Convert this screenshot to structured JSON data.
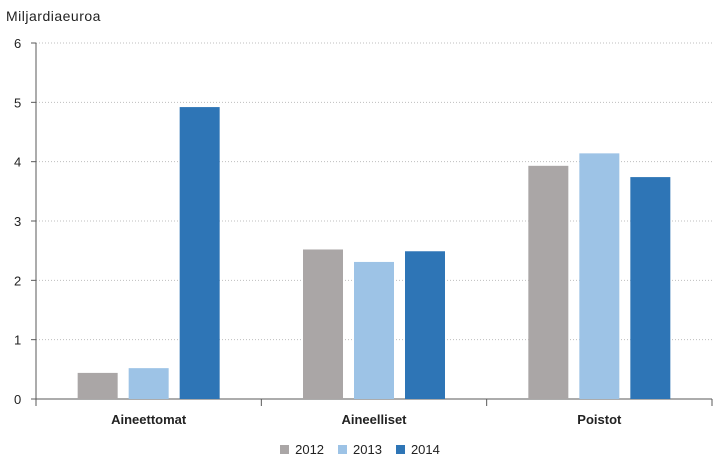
{
  "chart_data": {
    "type": "bar",
    "ylabel": "Miljardiaeuroa",
    "categories": [
      "Aineettomat",
      "Aineelliset",
      "Poistot"
    ],
    "series": [
      {
        "name": "2012",
        "color": "#aaa6a6",
        "values": [
          0.44,
          2.52,
          3.93
        ]
      },
      {
        "name": "2013",
        "color": "#9dc3e6",
        "values": [
          0.52,
          2.31,
          4.14
        ]
      },
      {
        "name": "2014",
        "color": "#2e75b6",
        "values": [
          4.92,
          2.49,
          3.74
        ]
      }
    ],
    "ylim": [
      0,
      6
    ],
    "yticks": [
      0,
      1,
      2,
      3,
      4,
      5,
      6
    ],
    "grid": true,
    "legend_position": "bottom"
  }
}
